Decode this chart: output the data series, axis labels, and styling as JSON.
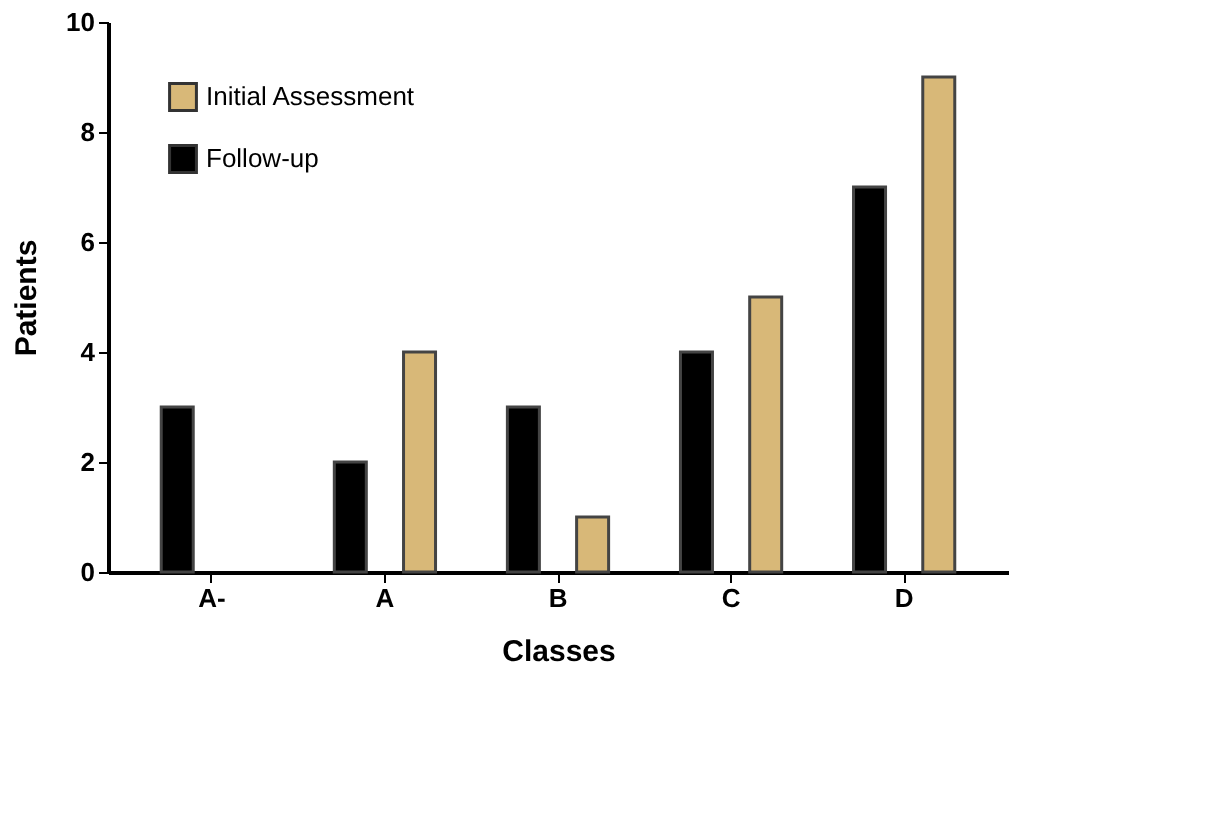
{
  "chart_data": {
    "type": "bar",
    "xlabel": "Classes",
    "ylabel": "Patients",
    "categories": [
      "A-",
      "A",
      "B",
      "C",
      "D"
    ],
    "series": [
      {
        "name": "Follow-up",
        "color": "#000000",
        "values": [
          3,
          2,
          3,
          4,
          7
        ]
      },
      {
        "name": "Initial Assessment",
        "color": "#d8b878",
        "values": [
          null,
          4,
          1,
          5,
          9
        ]
      }
    ],
    "ylim": [
      0,
      10
    ],
    "yticks": [
      0,
      2,
      4,
      6,
      8,
      10
    ],
    "grid": false,
    "legend": "top left"
  }
}
